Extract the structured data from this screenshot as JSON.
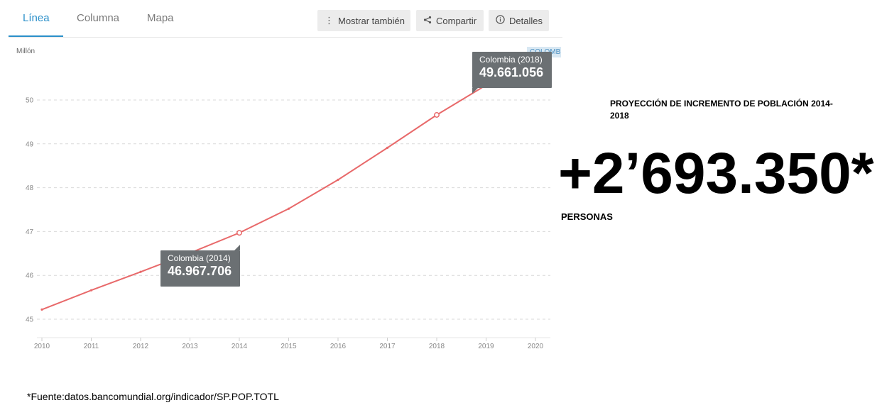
{
  "tabs": [
    {
      "label": "Línea",
      "active": true
    },
    {
      "label": "Columna",
      "active": false
    },
    {
      "label": "Mapa",
      "active": false
    }
  ],
  "toolbar": {
    "show_also": {
      "label": "Mostrar también",
      "icon": "vertical-dots-icon"
    },
    "share": {
      "label": "Compartir",
      "icon": "share-icon"
    },
    "details": {
      "label": "Detalles",
      "icon": "info-icon"
    }
  },
  "country_tag": "COLOMBIA",
  "tooltips": {
    "t2014": {
      "name": "Colombia (2014)",
      "value": "46.967.706"
    },
    "t2018": {
      "name": "Colombia (2018)",
      "value": "49.661.056"
    }
  },
  "side": {
    "title": "PROYECCIÓN DE INCREMENTO DE POBLACIÓN 2014-2018",
    "big_number": "+2’693.350*",
    "unit": "PERSONAS"
  },
  "footnote": "*Fuente:datos.bancomundial.org/indicador/SP.POP.TOTL",
  "colors": {
    "line": "#e8696a",
    "accent": "#2a8fc9",
    "tooltip_bg": "#6b7073"
  },
  "chart_data": {
    "type": "line",
    "title": "",
    "xlabel": "",
    "ylabel": "Millón",
    "x": [
      2010,
      2011,
      2012,
      2013,
      2014,
      2015,
      2016,
      2017,
      2018,
      2019
    ],
    "series": [
      {
        "name": "Colombia",
        "values": [
          45.22,
          45.66,
          46.08,
          46.51,
          46.97,
          47.52,
          48.18,
          48.91,
          49.66,
          50.34
        ]
      }
    ],
    "x_ticks": [
      "2010",
      "2011",
      "2012",
      "2013",
      "2014",
      "2015",
      "2016",
      "2017",
      "2018",
      "2019",
      "2020"
    ],
    "y_ticks": [
      "45",
      "46",
      "47",
      "48",
      "49",
      "50"
    ],
    "xlim": [
      2010,
      2020
    ],
    "ylim": [
      45,
      50
    ],
    "grid": true,
    "highlighted_points": [
      2014,
      2018
    ]
  }
}
